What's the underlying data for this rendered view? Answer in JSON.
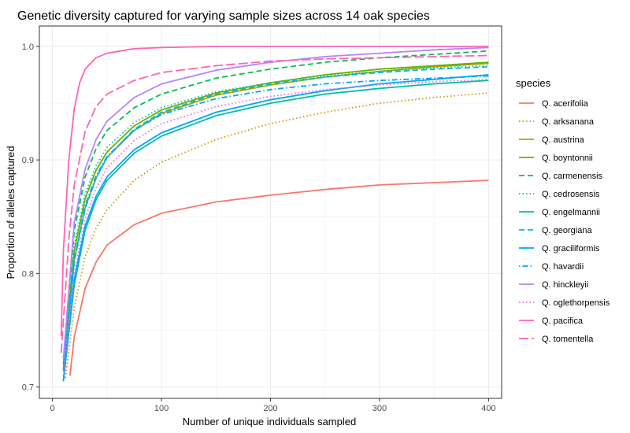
{
  "chart_data": {
    "type": "line",
    "title": "Genetic diversity captured for varying sample sizes across 14 oak species",
    "xlabel": "Number of unique individuals sampled",
    "ylabel": "Proportion of alleles captured",
    "xlim": [
      -12,
      412
    ],
    "ylim": [
      0.69,
      1.018
    ],
    "x_ticks": [
      0,
      100,
      200,
      300,
      400
    ],
    "y_ticks": [
      0.7,
      0.8,
      0.9,
      1.0
    ],
    "x_tick_labels": [
      "0",
      "100",
      "200",
      "300",
      "400"
    ],
    "y_tick_labels": [
      "0.7",
      "0.8",
      "0.9",
      "1.0"
    ],
    "grid": true,
    "legend_title": "species",
    "legend_position": "right",
    "series": [
      {
        "name": "Q. acerifolia",
        "color": "#F8766D",
        "dash": "solid",
        "points": [
          [
            16,
            0.71
          ],
          [
            20,
            0.744
          ],
          [
            30,
            0.787
          ],
          [
            40,
            0.81
          ],
          [
            50,
            0.825
          ],
          [
            75,
            0.843
          ],
          [
            100,
            0.853
          ],
          [
            150,
            0.863
          ],
          [
            200,
            0.869
          ],
          [
            250,
            0.874
          ],
          [
            300,
            0.878
          ],
          [
            350,
            0.88
          ],
          [
            400,
            0.882
          ]
        ]
      },
      {
        "name": "Q. arksanana",
        "color": "#DB8E00",
        "dash": "dotted",
        "points": [
          [
            12,
            0.708
          ],
          [
            20,
            0.77
          ],
          [
            30,
            0.815
          ],
          [
            40,
            0.84
          ],
          [
            50,
            0.856
          ],
          [
            75,
            0.882
          ],
          [
            100,
            0.898
          ],
          [
            150,
            0.918
          ],
          [
            200,
            0.932
          ],
          [
            250,
            0.942
          ],
          [
            300,
            0.95
          ],
          [
            350,
            0.955
          ],
          [
            400,
            0.959
          ]
        ]
      },
      {
        "name": "Q. austrina",
        "color": "#AEA200",
        "dash": "solid",
        "points": [
          [
            10,
            0.715
          ],
          [
            20,
            0.812
          ],
          [
            30,
            0.858
          ],
          [
            40,
            0.884
          ],
          [
            50,
            0.902
          ],
          [
            75,
            0.926
          ],
          [
            100,
            0.941
          ],
          [
            150,
            0.957
          ],
          [
            200,
            0.966
          ],
          [
            250,
            0.973
          ],
          [
            300,
            0.978
          ],
          [
            350,
            0.982
          ],
          [
            400,
            0.985
          ]
        ]
      },
      {
        "name": "Q. boyntonnii",
        "color": "#64B200",
        "dash": "solid",
        "points": [
          [
            10,
            0.72
          ],
          [
            20,
            0.82
          ],
          [
            30,
            0.866
          ],
          [
            40,
            0.891
          ],
          [
            50,
            0.907
          ],
          [
            75,
            0.93
          ],
          [
            100,
            0.944
          ],
          [
            150,
            0.959
          ],
          [
            200,
            0.968
          ],
          [
            250,
            0.975
          ],
          [
            300,
            0.98
          ],
          [
            350,
            0.983
          ],
          [
            400,
            0.986
          ]
        ]
      },
      {
        "name": "Q. carmenensis",
        "color": "#00BD5C",
        "dash": "dashed",
        "points": [
          [
            10,
            0.725
          ],
          [
            20,
            0.838
          ],
          [
            30,
            0.885
          ],
          [
            40,
            0.91
          ],
          [
            50,
            0.926
          ],
          [
            75,
            0.946
          ],
          [
            100,
            0.958
          ],
          [
            150,
            0.972
          ],
          [
            200,
            0.98
          ],
          [
            250,
            0.986
          ],
          [
            300,
            0.99
          ],
          [
            350,
            0.993
          ],
          [
            400,
            0.996
          ]
        ]
      },
      {
        "name": "Q. cedrosensis",
        "color": "#00C1A7",
        "dash": "dotted",
        "points": [
          [
            10,
            0.72
          ],
          [
            20,
            0.825
          ],
          [
            30,
            0.87
          ],
          [
            40,
            0.895
          ],
          [
            50,
            0.911
          ],
          [
            75,
            0.933
          ],
          [
            100,
            0.946
          ],
          [
            150,
            0.96
          ],
          [
            200,
            0.968
          ],
          [
            250,
            0.974
          ],
          [
            300,
            0.978
          ],
          [
            350,
            0.981
          ],
          [
            400,
            0.983
          ]
        ]
      },
      {
        "name": "Q. engelmannii",
        "color": "#00BFA0",
        "dash": "solid",
        "points": [
          [
            10,
            0.705
          ],
          [
            20,
            0.79
          ],
          [
            30,
            0.838
          ],
          [
            40,
            0.865
          ],
          [
            50,
            0.882
          ],
          [
            75,
            0.906
          ],
          [
            100,
            0.921
          ],
          [
            150,
            0.939
          ],
          [
            200,
            0.95
          ],
          [
            250,
            0.958
          ],
          [
            300,
            0.963
          ],
          [
            350,
            0.967
          ],
          [
            400,
            0.97
          ]
        ]
      },
      {
        "name": "Q. georgiana",
        "color": "#00BADE",
        "dash": "dashed",
        "points": [
          [
            10,
            0.715
          ],
          [
            20,
            0.81
          ],
          [
            30,
            0.857
          ],
          [
            40,
            0.884
          ],
          [
            50,
            0.902
          ],
          [
            75,
            0.927
          ],
          [
            100,
            0.942
          ],
          [
            150,
            0.958
          ],
          [
            200,
            0.967
          ],
          [
            250,
            0.973
          ],
          [
            300,
            0.977
          ],
          [
            350,
            0.98
          ],
          [
            400,
            0.982
          ]
        ]
      },
      {
        "name": "Q. graciliformis",
        "color": "#00A6FF",
        "dash": "solid",
        "points": [
          [
            10,
            0.706
          ],
          [
            20,
            0.795
          ],
          [
            30,
            0.842
          ],
          [
            40,
            0.868
          ],
          [
            50,
            0.885
          ],
          [
            75,
            0.909
          ],
          [
            100,
            0.924
          ],
          [
            150,
            0.942
          ],
          [
            200,
            0.953
          ],
          [
            250,
            0.961
          ],
          [
            300,
            0.967
          ],
          [
            350,
            0.971
          ],
          [
            400,
            0.975
          ]
        ]
      },
      {
        "name": "Q. havardii",
        "color": "#00A6FF",
        "dash": "dotdash",
        "points": [
          [
            10,
            0.71
          ],
          [
            20,
            0.812
          ],
          [
            30,
            0.86
          ],
          [
            40,
            0.886
          ],
          [
            50,
            0.903
          ],
          [
            75,
            0.926
          ],
          [
            100,
            0.94
          ],
          [
            150,
            0.954
          ],
          [
            200,
            0.962
          ],
          [
            250,
            0.967
          ],
          [
            300,
            0.97
          ],
          [
            350,
            0.972
          ],
          [
            400,
            0.974
          ]
        ]
      },
      {
        "name": "Q. hinckleyii",
        "color": "#B385FF",
        "dash": "solid",
        "points": [
          [
            10,
            0.725
          ],
          [
            20,
            0.845
          ],
          [
            30,
            0.892
          ],
          [
            40,
            0.918
          ],
          [
            50,
            0.934
          ],
          [
            75,
            0.955
          ],
          [
            100,
            0.967
          ],
          [
            150,
            0.979
          ],
          [
            200,
            0.986
          ],
          [
            250,
            0.991
          ],
          [
            300,
            0.994
          ],
          [
            350,
            0.997
          ],
          [
            400,
            0.999
          ]
        ]
      },
      {
        "name": "Q. oglethorpensis",
        "color": "#EF67EB",
        "dash": "dotted",
        "points": [
          [
            10,
            0.71
          ],
          [
            20,
            0.8
          ],
          [
            30,
            0.848
          ],
          [
            40,
            0.875
          ],
          [
            50,
            0.893
          ],
          [
            75,
            0.917
          ],
          [
            100,
            0.932
          ],
          [
            150,
            0.947
          ],
          [
            200,
            0.956
          ],
          [
            250,
            0.962
          ],
          [
            300,
            0.966
          ],
          [
            350,
            0.969
          ],
          [
            400,
            0.971
          ]
        ]
      },
      {
        "name": "Q. pacifica",
        "color": "#FF63B6",
        "dash": "solid",
        "points": [
          [
            8,
            0.745
          ],
          [
            10,
            0.82
          ],
          [
            15,
            0.9
          ],
          [
            20,
            0.945
          ],
          [
            25,
            0.968
          ],
          [
            30,
            0.98
          ],
          [
            40,
            0.99
          ],
          [
            50,
            0.994
          ],
          [
            75,
            0.998
          ],
          [
            100,
            0.999
          ],
          [
            150,
            1.0
          ],
          [
            200,
            1.0
          ],
          [
            300,
            1.0
          ],
          [
            400,
            1.0
          ]
        ]
      },
      {
        "name": "Q. tomentella",
        "color": "#FF63B6",
        "dash": "longdash",
        "points": [
          [
            8,
            0.73
          ],
          [
            15,
            0.83
          ],
          [
            20,
            0.878
          ],
          [
            30,
            0.925
          ],
          [
            40,
            0.947
          ],
          [
            50,
            0.958
          ],
          [
            75,
            0.97
          ],
          [
            100,
            0.977
          ],
          [
            150,
            0.983
          ],
          [
            200,
            0.987
          ],
          [
            250,
            0.989
          ],
          [
            300,
            0.99
          ],
          [
            350,
            0.991
          ],
          [
            400,
            0.992
          ]
        ]
      }
    ]
  }
}
